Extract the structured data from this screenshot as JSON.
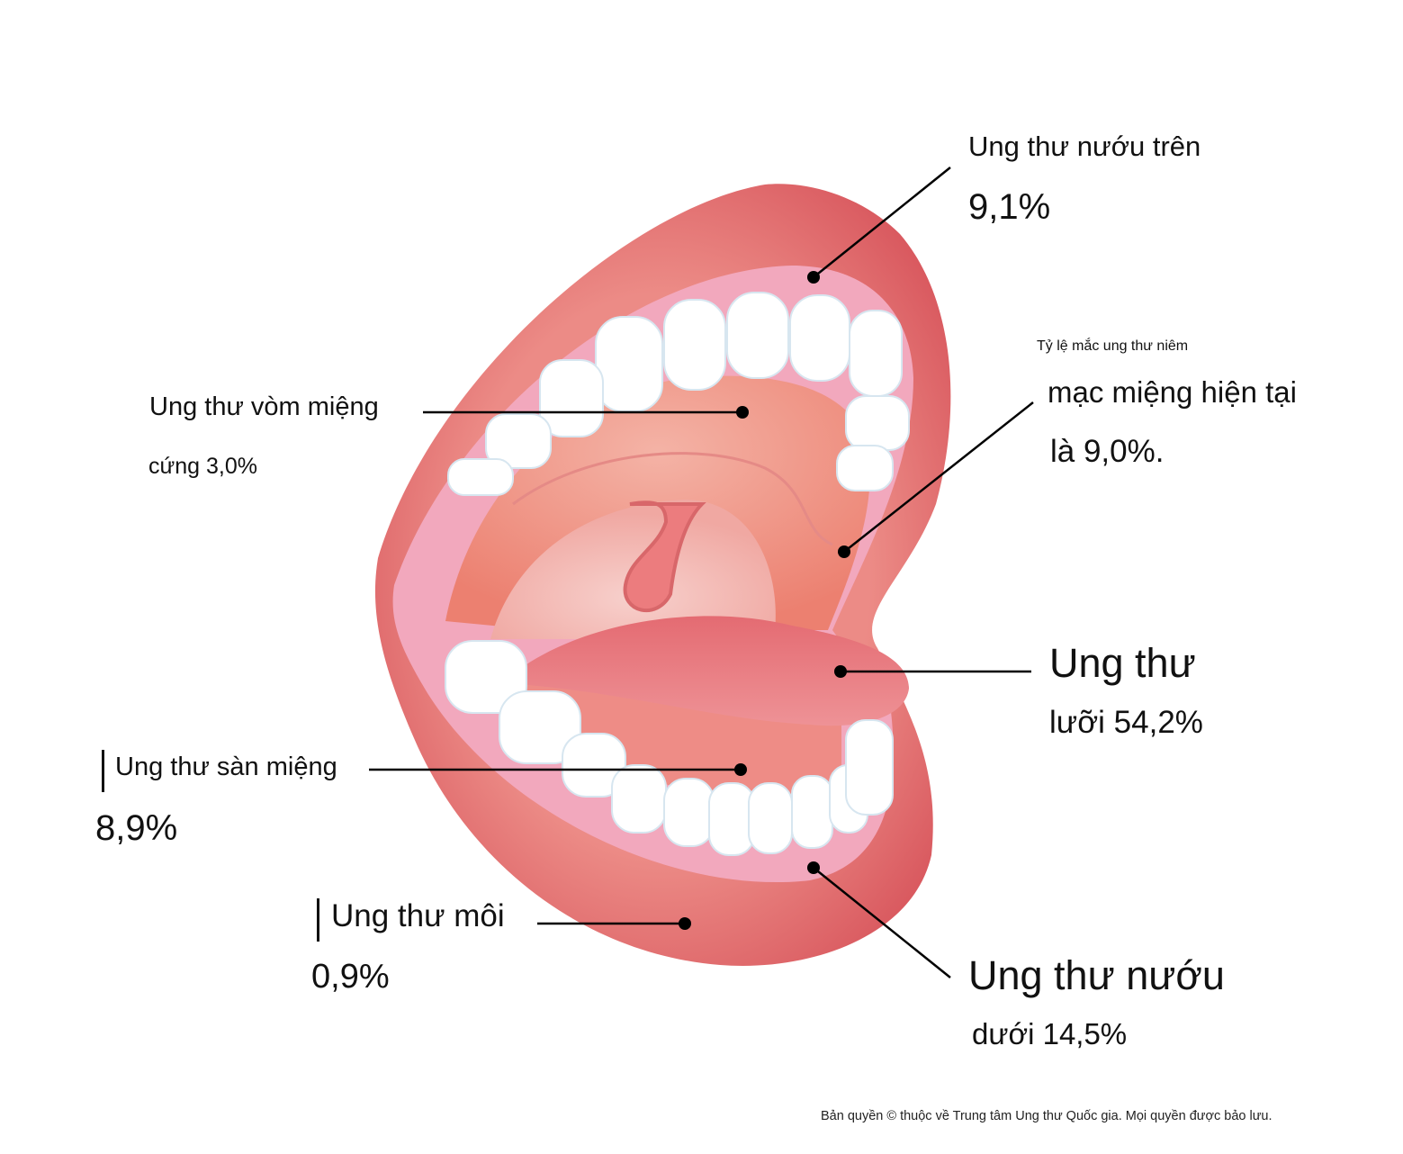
{
  "colors": {
    "lip": "#e0686c",
    "lip_light": "#ec8b86",
    "inner": "#f2a8bd",
    "palate": "#f2a39a",
    "tongue": "#e57c80",
    "tooth": "#ffffff",
    "leader": "#000000"
  },
  "labels": {
    "upper_gum": {
      "title": "Ung thư nướu trên",
      "value": "9,1%"
    },
    "mucosa": {
      "small": "Tỷ lệ mắc ung thư niêm",
      "line1": "mạc miệng hiện tại",
      "line2": "là 9,0%."
    },
    "hard_palate": {
      "title": "Ung thư vòm miệng",
      "value": "cứng 3,0%"
    },
    "tongue": {
      "title": "Ung thư",
      "value": "lưỡi 54,2%"
    },
    "floor": {
      "title": "Ung thư sàn miệng",
      "value": "8,9%"
    },
    "lip": {
      "title": "Ung thư môi",
      "value": "0,9%"
    },
    "lower_gum": {
      "title": "Ung thư nướu",
      "value": "dưới 14,5%"
    }
  },
  "copyright": "Bản quyền © thuộc về Trung tâm Ung thư Quốc gia. Mọi quyền được bảo lưu."
}
